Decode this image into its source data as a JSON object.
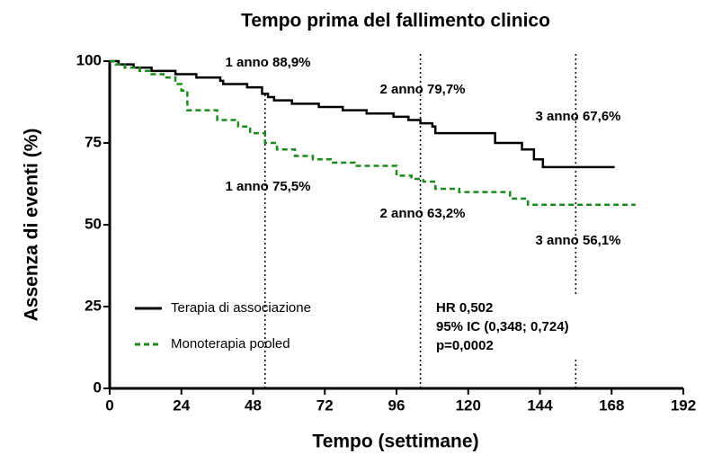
{
  "chart_data": {
    "type": "line",
    "step": true,
    "title": "Tempo prima del fallimento clinico",
    "x_label": "Tempo (settimane)",
    "y_label": "Assenza di eventi (%)",
    "xlim": [
      0,
      192
    ],
    "xticks": [
      0,
      24,
      48,
      72,
      96,
      120,
      144,
      168,
      192
    ],
    "ylim": [
      0,
      100
    ],
    "yticks": [
      0,
      25,
      50,
      75,
      100
    ],
    "vlines": [
      52,
      104,
      156
    ],
    "series": [
      {
        "name": "Terapia di associazione",
        "color": "#000000",
        "dash": false,
        "x": [
          0,
          3,
          3,
          8,
          8,
          14,
          14,
          22,
          22,
          29,
          29,
          37,
          37,
          38,
          38,
          46,
          46,
          51,
          51,
          53,
          53,
          55,
          55,
          61,
          61,
          70,
          70,
          78,
          78,
          86,
          86,
          95,
          95,
          100,
          100,
          104,
          104,
          108,
          108,
          109,
          109,
          129,
          129,
          138,
          138,
          142,
          142,
          145,
          145,
          169
        ],
        "values": [
          100,
          100,
          99,
          99,
          98,
          98,
          97,
          97,
          96,
          96,
          95,
          95,
          94,
          94,
          93,
          93,
          92,
          92,
          90,
          90,
          89,
          89,
          88,
          88,
          87,
          87,
          86,
          86,
          85,
          85,
          84,
          84,
          83,
          83,
          82,
          82,
          81,
          81,
          80,
          80,
          78,
          78,
          75,
          75,
          73,
          73,
          70,
          70,
          67.6,
          67.6
        ]
      },
      {
        "name": "Monoterapia pooled",
        "color": "#1a8a1a",
        "dash": true,
        "x": [
          0,
          2,
          2,
          5,
          5,
          10,
          10,
          14,
          14,
          18,
          18,
          22,
          22,
          24,
          24,
          26,
          26,
          36,
          36,
          43,
          43,
          47,
          47,
          52,
          52,
          56,
          56,
          62,
          62,
          68,
          68,
          74,
          74,
          82,
          82,
          96,
          96,
          101,
          101,
          105,
          105,
          109,
          109,
          117,
          117,
          134,
          134,
          140,
          140,
          176
        ],
        "values": [
          100,
          100,
          99,
          99,
          98,
          98,
          97,
          97,
          96,
          96,
          95,
          95,
          93,
          93,
          91,
          91,
          85,
          85,
          82,
          82,
          80,
          80,
          78,
          78,
          75,
          75,
          73,
          73,
          71,
          71,
          70,
          70,
          69,
          69,
          68,
          68,
          65,
          65,
          64,
          64,
          63.2,
          63.2,
          61,
          61,
          60,
          60,
          58,
          58,
          56.1,
          56.1
        ]
      }
    ],
    "annotations": [
      "1 anno 88,9%",
      "2 anno 79,7%",
      "3 anno 67,6%",
      "1 anno 75,5%",
      "2 anno 63,2%",
      "3 anno 56,1%",
      "HR 0,502",
      "95% IC (0,348; 0,724)",
      "p=0,0002"
    ]
  }
}
